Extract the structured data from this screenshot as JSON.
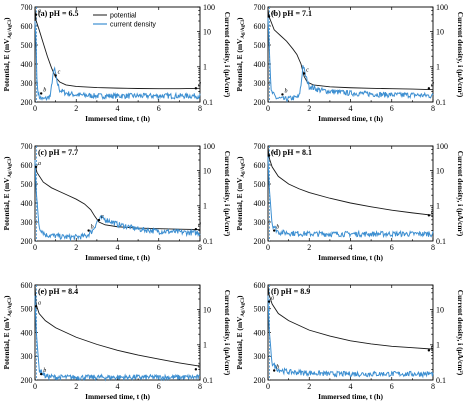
{
  "figure": {
    "ylabel_left": "Potential, E (mV",
    "ylabel_left_sub": "Ag/AgCl",
    "ylabel_left_end": ")",
    "ylabel_right": "Current density, i (μA/cm²)",
    "xlabel": "Immersed time, t (h)",
    "legend": {
      "potential": "potential",
      "current": "current density"
    },
    "colors": {
      "potential": "#1a1a1a",
      "current": "#3d8fd1",
      "dashed": "#3d8fd1"
    }
  },
  "chart_data": [
    {
      "type": "line",
      "title": "(a) pH = 6.5",
      "xlim": [
        0,
        8
      ],
      "ylim": [
        200,
        700
      ],
      "y2lim": [
        0.1,
        50
      ],
      "y2scale": "log",
      "xticks": [
        "0",
        "2",
        "4",
        "6",
        "8"
      ],
      "yticks": [
        "200",
        "300",
        "400",
        "500",
        "600",
        "700"
      ],
      "y2ticks": [
        "0.1",
        "1",
        "10",
        "100"
      ],
      "legend": true,
      "points": [
        {
          "label": "a",
          "x": 0.05,
          "y": 660
        },
        {
          "label": "b",
          "x": 0.3,
          "y": 245
        },
        {
          "label": "c",
          "x": 1.0,
          "y": 340
        },
        {
          "label": "d",
          "x": 7.8,
          "y": 272
        }
      ],
      "series": [
        {
          "name": "potential",
          "axis": "left",
          "x": [
            0,
            0.05,
            0.2,
            0.4,
            0.6,
            0.8,
            1.0,
            1.2,
            1.5,
            2,
            3,
            4,
            5,
            6,
            7,
            8
          ],
          "y": [
            700,
            630,
            580,
            510,
            440,
            380,
            330,
            305,
            290,
            282,
            276,
            273,
            271,
            270,
            270,
            272
          ]
        },
        {
          "name": "current density",
          "axis": "right",
          "x": [
            0,
            0.05,
            0.1,
            0.2,
            0.4,
            0.6,
            0.75,
            0.85,
            0.95,
            1.05,
            1.2,
            1.5,
            2,
            3,
            4,
            5,
            6,
            7,
            8
          ],
          "y": [
            20,
            5,
            0.3,
            0.14,
            0.12,
            0.13,
            0.15,
            0.5,
            0.9,
            0.4,
            0.22,
            0.18,
            0.16,
            0.15,
            0.15,
            0.15,
            0.15,
            0.15,
            0.15
          ]
        }
      ]
    },
    {
      "type": "line",
      "title": "(b) pH = 7.1",
      "xlim": [
        0,
        8
      ],
      "ylim": [
        200,
        700
      ],
      "y2lim": [
        0.1,
        50
      ],
      "y2scale": "log",
      "xticks": [
        "0",
        "2",
        "4",
        "6",
        "8"
      ],
      "yticks": [
        "200",
        "300",
        "400",
        "500",
        "600",
        "700"
      ],
      "y2ticks": [
        "0.1",
        "1",
        "10",
        "100"
      ],
      "legend": false,
      "points": [
        {
          "label": "a",
          "x": 0.05,
          "y": 650
        },
        {
          "label": "b",
          "x": 0.7,
          "y": 240
        },
        {
          "label": "c",
          "x": 1.75,
          "y": 350
        },
        {
          "label": "d",
          "x": 7.8,
          "y": 272
        }
      ],
      "series": [
        {
          "name": "potential",
          "axis": "left",
          "x": [
            0,
            0.05,
            0.3,
            0.6,
            0.9,
            1.2,
            1.4,
            1.6,
            1.75,
            1.9,
            2.2,
            3,
            4,
            5,
            6,
            7,
            8
          ],
          "y": [
            690,
            650,
            580,
            550,
            520,
            480,
            450,
            400,
            335,
            305,
            290,
            280,
            275,
            272,
            270,
            268,
            265
          ]
        },
        {
          "name": "current density",
          "axis": "right",
          "x": [
            0,
            0.05,
            0.15,
            0.4,
            0.8,
            1.2,
            1.5,
            1.6,
            1.7,
            1.8,
            2.0,
            2.5,
            3,
            4,
            5,
            6,
            7,
            8
          ],
          "y": [
            25,
            5,
            0.2,
            0.13,
            0.12,
            0.13,
            0.14,
            0.3,
            1.2,
            0.6,
            0.28,
            0.22,
            0.2,
            0.18,
            0.17,
            0.16,
            0.16,
            0.15
          ]
        }
      ]
    },
    {
      "type": "line",
      "title": "(c) pH = 7.7",
      "xlim": [
        0,
        8
      ],
      "ylim": [
        200,
        700
      ],
      "y2lim": [
        0.1,
        50
      ],
      "y2scale": "log",
      "xticks": [
        "0",
        "2",
        "4",
        "6",
        "8"
      ],
      "yticks": [
        "200",
        "300",
        "400",
        "500",
        "600",
        "700"
      ],
      "y2ticks": [
        "0.1",
        "1",
        "10",
        "100"
      ],
      "legend": false,
      "points": [
        {
          "label": "a",
          "x": 0.05,
          "y": 590
        },
        {
          "label": "b",
          "x": 2.6,
          "y": 255
        },
        {
          "label": "c",
          "x": 3.1,
          "y": 310
        },
        {
          "label": "d",
          "x": 7.8,
          "y": 262
        }
      ],
      "series": [
        {
          "name": "potential",
          "axis": "left",
          "x": [
            0,
            0.1,
            0.4,
            0.8,
            1.2,
            1.6,
            2.0,
            2.4,
            2.7,
            2.9,
            3.1,
            3.4,
            4,
            5,
            6,
            7,
            8
          ],
          "y": [
            600,
            560,
            510,
            480,
            460,
            440,
            420,
            395,
            365,
            330,
            300,
            285,
            275,
            268,
            265,
            262,
            260
          ]
        },
        {
          "name": "current density",
          "axis": "right",
          "x": [
            0,
            0.05,
            0.2,
            0.5,
            1.0,
            1.5,
            2.0,
            2.5,
            2.8,
            3.0,
            3.2,
            3.6,
            4,
            5,
            6,
            7,
            8
          ],
          "y": [
            20,
            3,
            0.25,
            0.15,
            0.14,
            0.13,
            0.13,
            0.14,
            0.2,
            0.35,
            0.45,
            0.38,
            0.3,
            0.22,
            0.19,
            0.18,
            0.17
          ]
        }
      ]
    },
    {
      "type": "line",
      "title": "(d) pH = 8.1",
      "xlim": [
        0,
        8
      ],
      "ylim": [
        200,
        700
      ],
      "y2lim": [
        0.1,
        50
      ],
      "y2scale": "log",
      "xticks": [
        "0",
        "2",
        "4",
        "6",
        "8"
      ],
      "yticks": [
        "200",
        "300",
        "400",
        "500",
        "600",
        "700"
      ],
      "y2ticks": [
        "0.1",
        "1",
        "10",
        "100"
      ],
      "legend": false,
      "points": [
        {
          "label": "a",
          "x": 0.05,
          "y": 650
        },
        {
          "label": "b",
          "x": 0.3,
          "y": 255
        },
        {
          "label": "c",
          "x": 7.8,
          "y": 335
        }
      ],
      "series": [
        {
          "name": "potential",
          "axis": "left",
          "x": [
            0,
            0.05,
            0.2,
            0.5,
            1,
            1.5,
            2,
            3,
            4,
            5,
            6,
            7,
            8
          ],
          "y": [
            700,
            640,
            590,
            540,
            500,
            475,
            455,
            425,
            400,
            380,
            362,
            348,
            335
          ]
        },
        {
          "name": "current density",
          "axis": "right",
          "x": [
            0,
            0.05,
            0.2,
            0.5,
            1,
            2,
            3,
            4,
            5,
            6,
            7,
            8
          ],
          "y": [
            25,
            4,
            0.3,
            0.18,
            0.17,
            0.16,
            0.16,
            0.16,
            0.16,
            0.16,
            0.16,
            0.16
          ]
        }
      ]
    },
    {
      "type": "line",
      "title": "(e) pH = 8.4",
      "xlim": [
        0,
        8
      ],
      "ylim": [
        200,
        600
      ],
      "y2lim": [
        0.1,
        50
      ],
      "y2scale": "log",
      "xticks": [
        "0",
        "2",
        "4",
        "6",
        "8"
      ],
      "yticks": [
        "200",
        "300",
        "400",
        "500",
        "600"
      ],
      "y2ticks": [
        "0.1",
        "1",
        "10"
      ],
      "legend": false,
      "points": [
        {
          "label": "a",
          "x": 0.05,
          "y": 510
        },
        {
          "label": "b",
          "x": 0.3,
          "y": 225
        },
        {
          "label": "c",
          "x": 7.8,
          "y": 245
        }
      ],
      "series": [
        {
          "name": "potential",
          "axis": "left",
          "x": [
            0,
            0.05,
            0.2,
            0.5,
            1,
            1.5,
            2,
            3,
            4,
            5,
            6,
            7,
            8
          ],
          "y": [
            600,
            520,
            480,
            450,
            420,
            400,
            380,
            350,
            325,
            305,
            288,
            272,
            258
          ]
        },
        {
          "name": "current density",
          "axis": "right",
          "x": [
            0,
            0.05,
            0.2,
            0.5,
            1,
            2,
            3,
            4,
            5,
            6,
            7,
            8
          ],
          "y": [
            25,
            3,
            0.2,
            0.13,
            0.12,
            0.12,
            0.12,
            0.12,
            0.12,
            0.12,
            0.12,
            0.12
          ]
        }
      ]
    },
    {
      "type": "line",
      "title": "(f) pH = 8.9",
      "xlim": [
        0,
        8
      ],
      "ylim": [
        200,
        600
      ],
      "y2lim": [
        0.1,
        50
      ],
      "y2scale": "log",
      "xticks": [
        "0",
        "2",
        "4",
        "6",
        "8"
      ],
      "yticks": [
        "200",
        "300",
        "400",
        "500",
        "600"
      ],
      "y2ticks": [
        "0.1",
        "1",
        "10"
      ],
      "legend": false,
      "points": [
        {
          "label": "a",
          "x": 0.05,
          "y": 530
        },
        {
          "label": "b",
          "x": 0.3,
          "y": 240
        },
        {
          "label": "c",
          "x": 7.8,
          "y": 325
        }
      ],
      "series": [
        {
          "name": "potential",
          "axis": "left",
          "x": [
            0,
            0.05,
            0.2,
            0.5,
            1,
            1.5,
            2,
            3,
            4,
            5,
            6,
            7,
            8
          ],
          "y": [
            600,
            560,
            520,
            480,
            450,
            430,
            410,
            385,
            365,
            352,
            342,
            336,
            330
          ]
        },
        {
          "name": "current density",
          "axis": "right",
          "x": [
            0,
            0.05,
            0.2,
            0.5,
            1,
            2,
            3,
            4,
            5,
            6,
            7,
            8
          ],
          "y": [
            25,
            3,
            0.3,
            0.2,
            0.17,
            0.16,
            0.15,
            0.15,
            0.15,
            0.15,
            0.15,
            0.15
          ]
        }
      ]
    }
  ]
}
